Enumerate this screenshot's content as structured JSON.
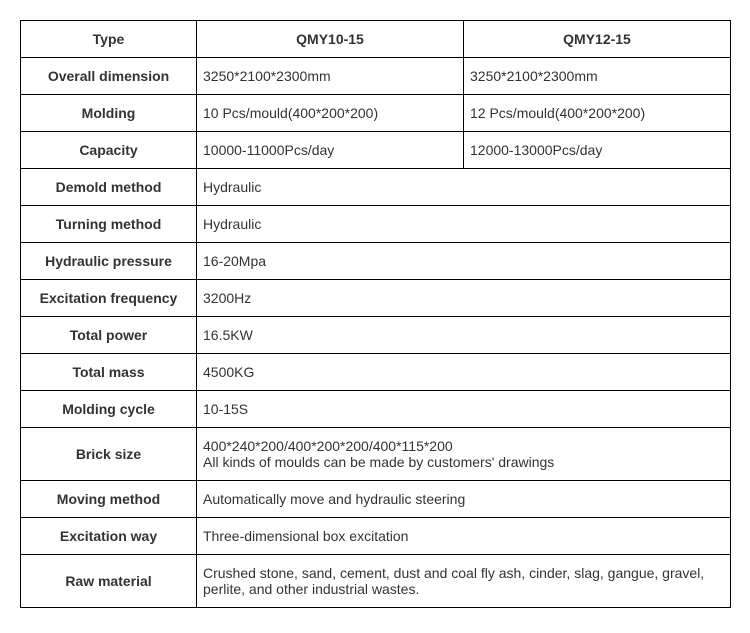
{
  "table": {
    "columns": [
      "Type",
      "QMY10-15",
      "QMY12-15"
    ],
    "rows": [
      {
        "label": "Overall dimension",
        "v1": "3250*2100*2300mm",
        "v2": "3250*2100*2300mm",
        "span": false
      },
      {
        "label": "Molding",
        "v1": "10 Pcs/mould(400*200*200)",
        "v2": "12 Pcs/mould(400*200*200)",
        "span": false
      },
      {
        "label": "Capacity",
        "v1": "10000-11000Pcs/day",
        "v2": "12000-13000Pcs/day",
        "span": false
      },
      {
        "label": "Demold method",
        "v1": "Hydraulic",
        "span": true
      },
      {
        "label": "Turning method",
        "v1": "Hydraulic",
        "span": true
      },
      {
        "label": "Hydraulic pressure",
        "v1": "16-20Mpa",
        "span": true
      },
      {
        "label": "Excitation frequency",
        "v1": "3200Hz",
        "span": true
      },
      {
        "label": "Total power",
        "v1": "16.5KW",
        "span": true
      },
      {
        "label": "Total mass",
        "v1": "4500KG",
        "span": true
      },
      {
        "label": "Molding cycle",
        "v1": "10-15S",
        "span": true
      },
      {
        "label": "Brick size",
        "v1": "400*240*200/400*200*200/400*115*200\nAll kinds of moulds can be made by customers' drawings",
        "span": true
      },
      {
        "label": "Moving method",
        "v1": "Automatically move and hydraulic steering",
        "span": true
      },
      {
        "label": "Excitation way",
        "v1": "Three-dimensional box excitation",
        "span": true
      },
      {
        "label": "Raw material",
        "v1": "Crushed stone, sand, cement, dust and coal fly ash, cinder, slag, gangue, gravel, perlite, and other industrial wastes.",
        "span": true
      }
    ],
    "border_color": "#000000",
    "text_color": "#333333",
    "background_color": "#ffffff",
    "font_size": 14,
    "label_col_width": 176,
    "value_col_width": 267
  }
}
